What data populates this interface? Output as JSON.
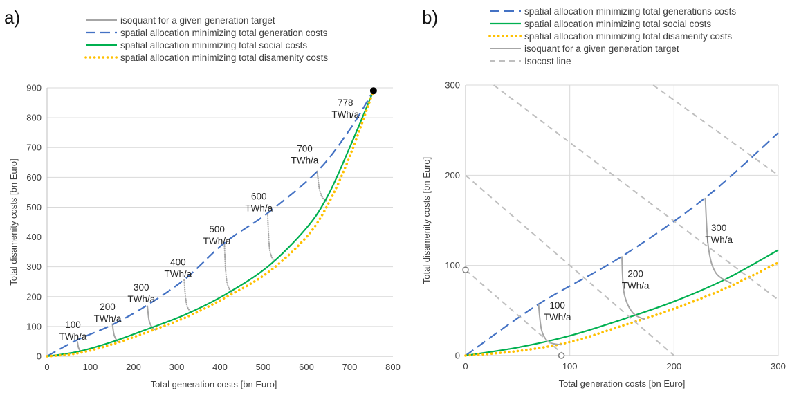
{
  "chart_data": [
    {
      "panel_label": "a)",
      "type": "line",
      "xlabel": "Total generation costs [bn Euro]",
      "ylabel": "Total disamenity costs [bn Euro]",
      "xlim": [
        0,
        800
      ],
      "ylim": [
        0,
        900
      ],
      "xticks": [
        "0",
        "100",
        "200",
        "300",
        "400",
        "500",
        "600",
        "700",
        "800"
      ],
      "yticks": [
        "0",
        "100",
        "200",
        "300",
        "400",
        "500",
        "600",
        "700",
        "800",
        "900"
      ],
      "legend_position": "top-center",
      "grid": "horizontal",
      "series": [
        {
          "name": "isoquant for a given generation target",
          "style": "solid-gray",
          "color": "#a6a6a6",
          "segments": [
            {
              "target": "100",
              "points": [
                [
                  70,
                  50
                ],
                [
                  73,
                  28
                ],
                [
                  78,
                  15
                ],
                [
                  82,
                  11
                ]
              ]
            },
            {
              "target": "200",
              "points": [
                [
                  151,
                  110
                ],
                [
                  155,
                  72
                ],
                [
                  162,
                  52
                ],
                [
                  170,
                  45
                ]
              ]
            },
            {
              "target": "300",
              "points": [
                [
                  232,
                  170
                ],
                [
                  236,
                  120
                ],
                [
                  243,
                  97
                ],
                [
                  252,
                  88
                ]
              ]
            },
            {
              "target": "400",
              "points": [
                [
                  317,
                  255
                ],
                [
                  322,
                  180
                ],
                [
                  330,
                  152
                ],
                [
                  340,
                  140
                ]
              ]
            },
            {
              "target": "500",
              "points": [
                [
                  410,
                  380
                ],
                [
                  414,
                  270
                ],
                [
                  420,
                  230
                ],
                [
                  430,
                  212
                ]
              ]
            },
            {
              "target": "600",
              "points": [
                [
                  510,
                  480
                ],
                [
                  514,
                  370
                ],
                [
                  520,
                  332
                ],
                [
                  528,
                  318
                ]
              ]
            },
            {
              "target": "700",
              "points": [
                [
                  625,
                  620
                ],
                [
                  630,
                  560
                ],
                [
                  638,
                  530
                ],
                [
                  648,
                  518
                ]
              ]
            }
          ]
        },
        {
          "name": "spatial allocation minimizing total generation costs",
          "style": "dashed",
          "color": "#4472c4",
          "x": [
            0,
            70,
            150,
            230,
            320,
            410,
            510,
            625,
            700,
            755
          ],
          "y": [
            0,
            55,
            105,
            170,
            260,
            380,
            480,
            620,
            760,
            890
          ]
        },
        {
          "name": "spatial allocation minimizing total social costs",
          "style": "solid",
          "color": "#00b050",
          "x": [
            0,
            70,
            150,
            230,
            320,
            410,
            510,
            600,
            650,
            700,
            755
          ],
          "y": [
            0,
            15,
            48,
            90,
            140,
            205,
            300,
            430,
            540,
            700,
            890
          ]
        },
        {
          "name": "spatial allocation minimizing total disamenity costs",
          "style": "dotted",
          "color": "#ffc000",
          "x": [
            0,
            70,
            150,
            230,
            320,
            410,
            510,
            600,
            650,
            700,
            755
          ],
          "y": [
            0,
            10,
            40,
            80,
            130,
            195,
            280,
            400,
            510,
            670,
            890
          ]
        }
      ],
      "end_point": {
        "x": 755,
        "y": 890
      },
      "annotations": [
        {
          "lines": [
            "100",
            "TWh/a"
          ],
          "x": 60,
          "y": 95
        },
        {
          "lines": [
            "200",
            "TWh/a"
          ],
          "x": 140,
          "y": 155
        },
        {
          "lines": [
            "300",
            "TWh/a"
          ],
          "x": 218,
          "y": 220
        },
        {
          "lines": [
            "400",
            "TWh/a"
          ],
          "x": 303,
          "y": 305
        },
        {
          "lines": [
            "500",
            "TWh/a"
          ],
          "x": 393,
          "y": 415
        },
        {
          "lines": [
            "600",
            "TWh/a"
          ],
          "x": 490,
          "y": 525
        },
        {
          "lines": [
            "700",
            "TWh/a"
          ],
          "x": 596,
          "y": 685
        },
        {
          "lines": [
            "778",
            "TWh/a"
          ],
          "x": 690,
          "y": 840
        }
      ]
    },
    {
      "panel_label": "b)",
      "type": "line",
      "xlabel": "Total generation costs [bn Euro]",
      "ylabel": "Total disamenity costs [bn Euro]",
      "xlim": [
        0,
        300
      ],
      "ylim": [
        0,
        300
      ],
      "xticks": [
        "0",
        "100",
        "200",
        "300"
      ],
      "yticks": [
        "0",
        "100",
        "200",
        "300"
      ],
      "legend_position": "top-center",
      "grid": "both",
      "series": [
        {
          "name": "spatial allocation minimizing total generations costs",
          "style": "dashed",
          "color": "#4472c4",
          "x": [
            0,
            70,
            150,
            230,
            300
          ],
          "y": [
            0,
            57,
            110,
            175,
            247
          ]
        },
        {
          "name": "spatial allocation minimizing total social costs",
          "style": "solid",
          "color": "#00b050",
          "x": [
            0,
            50,
            100,
            150,
            200,
            250,
            300
          ],
          "y": [
            0,
            9,
            22,
            40,
            60,
            85,
            117
          ]
        },
        {
          "name": "spatial allocation minimizing total disamenity costs",
          "style": "dotted",
          "color": "#ffc000",
          "x": [
            0,
            50,
            100,
            150,
            200,
            250,
            300
          ],
          "y": [
            0,
            5,
            15,
            33,
            52,
            75,
            103
          ]
        },
        {
          "name": "isoquant for a given generation target",
          "style": "solid-gray",
          "color": "#a6a6a6",
          "segments": [
            {
              "target": "100",
              "points": [
                [
                  70,
                  57
                ],
                [
                  73,
                  28
                ],
                [
                  80,
                  15
                ],
                [
                  92,
                  12
                ]
              ]
            },
            {
              "target": "200",
              "points": [
                [
                  150,
                  110
                ],
                [
                  152,
                  70
                ],
                [
                  160,
                  48
                ],
                [
                  172,
                  40
                ]
              ]
            },
            {
              "target": "300",
              "points": [
                [
                  230,
                  175
                ],
                [
                  233,
                  120
                ],
                [
                  240,
                  92
                ],
                [
                  255,
                  80
                ]
              ]
            }
          ]
        },
        {
          "name": "Isocost line",
          "style": "dashed-gray",
          "color": "#bfbfbf",
          "lines": [
            {
              "points": [
                [
                  0,
                  95
                ],
                [
                  95,
                  0
                ]
              ]
            },
            {
              "points": [
                [
                  0,
                  200
                ],
                [
                  200,
                  0
                ]
              ]
            },
            {
              "points": [
                [
                  27,
                  300
                ],
                [
                  300,
                  62
                ]
              ]
            },
            {
              "points": [
                [
                  180,
                  300
                ],
                [
                  300,
                  200
                ]
              ]
            }
          ]
        }
      ],
      "circle_markers": [
        {
          "x": 0,
          "y": 95
        },
        {
          "x": 92,
          "y": 0
        }
      ],
      "annotations": [
        {
          "lines": [
            "100",
            "TWh/a"
          ],
          "x": 88,
          "y": 52
        },
        {
          "lines": [
            "200",
            "TWh/a"
          ],
          "x": 163,
          "y": 87
        },
        {
          "lines": [
            "300",
            "TWh/a"
          ],
          "x": 243,
          "y": 138
        }
      ]
    }
  ]
}
